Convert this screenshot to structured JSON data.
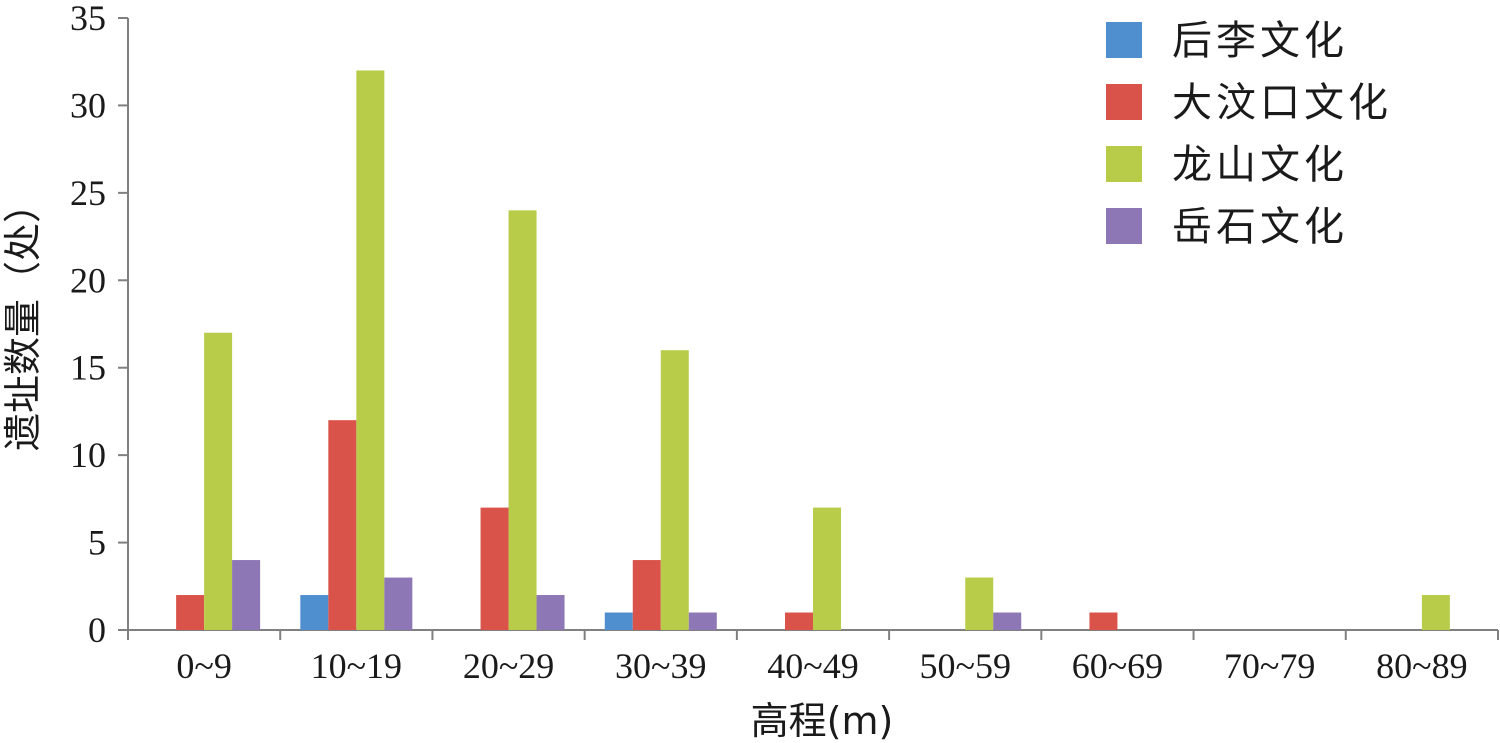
{
  "chart_data": {
    "type": "bar",
    "title": "",
    "xlabel": "高程(m)",
    "ylabel": "遗址数量（处）",
    "ylim": [
      0,
      35
    ],
    "yticks": [
      0,
      5,
      10,
      15,
      20,
      25,
      30,
      35
    ],
    "categories": [
      "0~9",
      "10~19",
      "20~29",
      "30~39",
      "40~49",
      "50~59",
      "60~69",
      "70~79",
      "80~89"
    ],
    "series": [
      {
        "name": "后李文化",
        "color": "#4f8fd0",
        "values": [
          0,
          2,
          0,
          1,
          0,
          0,
          0,
          0,
          0
        ]
      },
      {
        "name": "大汶口文化",
        "color": "#d9534a",
        "values": [
          2,
          12,
          7,
          4,
          1,
          0,
          1,
          0,
          0
        ]
      },
      {
        "name": "龙山文化",
        "color": "#b8cc4a",
        "values": [
          17,
          32,
          24,
          16,
          7,
          3,
          0,
          0,
          2
        ]
      },
      {
        "name": "岳石文化",
        "color": "#8e77b5",
        "values": [
          4,
          3,
          2,
          1,
          0,
          1,
          0,
          0,
          0
        ]
      }
    ],
    "legend_position": "top-right",
    "grid": false
  }
}
